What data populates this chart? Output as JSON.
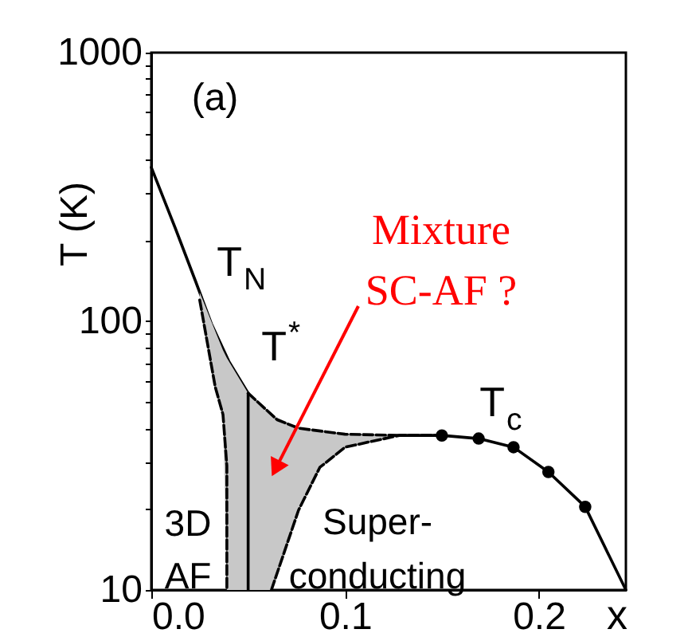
{
  "chart_data": {
    "type": "line",
    "xlabel": "x",
    "ylabel": "T (K)",
    "log": "y",
    "grid": false,
    "xlim": [
      0,
      0.245
    ],
    "xticks": [
      {
        "value": 0,
        "label": "0.0"
      },
      {
        "value": 0.1,
        "label": "0.1"
      },
      {
        "value": 0.2,
        "label": "0.2"
      }
    ],
    "ylim": [
      10,
      1000
    ],
    "yticks": [
      10,
      {
        "value": 20,
        "label": null
      },
      {
        "value": 30,
        "label": null
      },
      {
        "value": 40,
        "label": null
      },
      {
        "value": 50,
        "label": null
      },
      {
        "value": 60,
        "label": null
      },
      {
        "value": 70,
        "label": null
      },
      {
        "value": 80,
        "label": null
      },
      {
        "value": 90,
        "label": null
      },
      100,
      {
        "value": 200,
        "label": null
      },
      {
        "value": 300,
        "label": null
      },
      {
        "value": 400,
        "label": null
      },
      {
        "value": 500,
        "label": null
      },
      {
        "value": 600,
        "label": null
      },
      {
        "value": 700,
        "label": null
      },
      {
        "value": 800,
        "label": null
      },
      {
        "value": 900,
        "label": null
      },
      1000
    ],
    "series": [
      {
        "color": "#000000",
        "line_style": "solid",
        "x": [
          0,
          0.0124,
          0.023,
          0.031,
          0.04,
          0.05
        ],
        "values": [
          374,
          222,
          140,
          98,
          71,
          54
        ]
      },
      {
        "color": "#000000",
        "line_style": "dashed",
        "x": [
          0.025,
          0.033,
          0.037,
          0.039,
          0.039
        ],
        "values": [
          120,
          57,
          45,
          29,
          10
        ]
      },
      {
        "color": "#000000",
        "line_style": "solid",
        "x": [
          0.05,
          0.05
        ],
        "values": [
          10,
          54
        ]
      },
      {
        "color": "#000000",
        "line_style": "dashed",
        "x": [
          0.062,
          0.076,
          0.087,
          0.1,
          0.128,
          0.15
        ],
        "values": [
          10,
          19.8,
          28.6,
          34,
          37.6,
          37.6
        ]
      },
      {
        "color": "#000000",
        "line_style": "solid",
        "x": [
          0.128,
          0.15,
          0.169,
          0.187,
          0.205,
          0.224,
          0.245
        ],
        "values": [
          37.6,
          37.6,
          36.6,
          34,
          27.5,
          20.4,
          10
        ]
      },
      {
        "type": "scatter",
        "color": "#000000",
        "marker": "circle",
        "x": [
          0.15,
          0.169,
          0.187,
          0.205,
          0.224
        ],
        "values": [
          37.6,
          36.6,
          34,
          27.5,
          20.4
        ]
      },
      {
        "type": "line",
        "color": "#c8c8c8",
        "x": [
          0.025,
          0.033,
          0.037,
          0.039,
          0.05,
          0.062,
          0.076,
          0.087,
          0.1,
          0.128
        ],
        "values": [
          null,
          null,
          null,
          null,
          null,
          null,
          null,
          null,
          null,
          null
        ],
        "upper": [
          128,
          92,
          78,
          73,
          54,
          45,
          40,
          39,
          38,
          37.6
        ],
        "lower": [
          120,
          57,
          45,
          10,
          10,
          10,
          19.8,
          28.6,
          34,
          37.6
        ]
      },
      {
        "color": "#000000",
        "line_style": "dashed",
        "x": [
          0.05,
          0.065,
          0.076,
          0.1,
          0.128
        ],
        "values": [
          54,
          43,
          40,
          38,
          37.6
        ]
      }
    ],
    "annotations": [
      "(a)",
      "T$_{N}$",
      "T$^{*}$",
      "T$_{c}$",
      "3D\nAF",
      "Super-\nconducting",
      "Mixture\nSC-AF ?"
    ]
  }
}
